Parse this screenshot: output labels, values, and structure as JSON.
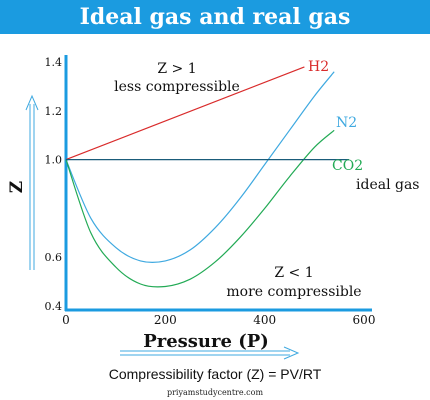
{
  "chart_data": {
    "type": "line",
    "title": "Ideal gas and real gas",
    "xlabel": "Pressure (P)",
    "ylabel": "Z",
    "xlim": [
      0,
      600
    ],
    "ylim": [
      0.4,
      1.4
    ],
    "xticks": [
      0,
      200,
      400,
      600
    ],
    "yticks": [
      0.4,
      0.6,
      1.0,
      1.2,
      1.4
    ],
    "xtick_labels": [
      "0",
      "200",
      "400",
      "600"
    ],
    "ytick_labels": [
      "0.4",
      "0.6",
      "1.0",
      "1.2",
      "1.4"
    ],
    "grid": false,
    "legend": "none",
    "series": [
      {
        "name": "H2",
        "color": "#d92b2b",
        "x": [
          0,
          480
        ],
        "y": [
          1.0,
          1.38
        ]
      },
      {
        "name": "N2",
        "color": "#3fa9e0",
        "x": [
          0,
          50,
          100,
          150,
          200,
          250,
          300,
          350,
          400,
          450,
          500,
          540
        ],
        "y": [
          1.0,
          0.76,
          0.64,
          0.585,
          0.585,
          0.63,
          0.72,
          0.84,
          0.98,
          1.12,
          1.26,
          1.36
        ]
      },
      {
        "name": "CO2",
        "color": "#22aa55",
        "x": [
          0,
          50,
          100,
          150,
          200,
          250,
          300,
          350,
          400,
          450,
          500,
          540
        ],
        "y": [
          1.0,
          0.7,
          0.56,
          0.49,
          0.48,
          0.51,
          0.58,
          0.68,
          0.8,
          0.93,
          1.05,
          1.12
        ]
      },
      {
        "name": "ideal gas",
        "color": "#1a5c7a",
        "x": [
          0,
          570
        ],
        "y": [
          1.0,
          1.0
        ]
      }
    ],
    "annotations": [
      {
        "line1": "Z > 1",
        "line2": "less compressible"
      },
      {
        "line1": "Z < 1",
        "line2": "more compressible"
      }
    ]
  },
  "formula": "Compressibility factor (Z) = PV/RT",
  "credit": "priyamstudycentre.com",
  "colors": {
    "banner": "#1b9be0",
    "axis": "#1b9be0",
    "arrow": "#3fa9e0"
  }
}
